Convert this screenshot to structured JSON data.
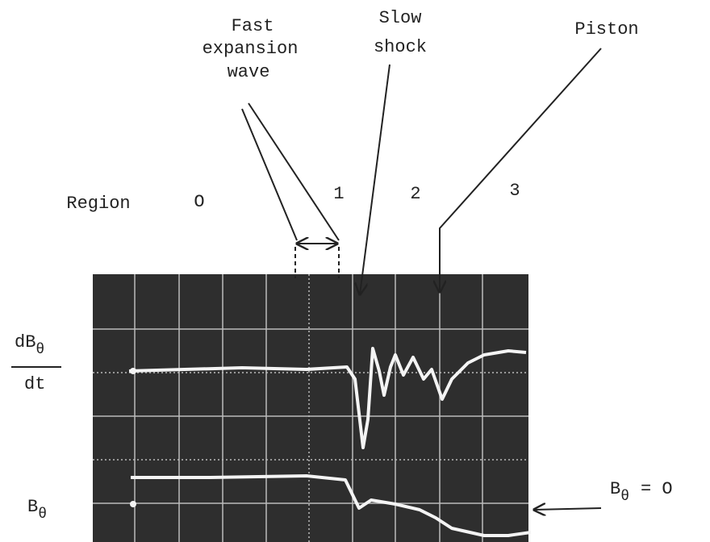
{
  "labels": {
    "fast": [
      "Fast",
      "expansion",
      "wave"
    ],
    "slow": [
      "Slow",
      "shock"
    ],
    "piston": "Piston",
    "region": "Region",
    "regions": [
      "O",
      "1",
      "2",
      "3"
    ],
    "dbdt": {
      "numerator": "dB",
      "subscript": "θ",
      "denominator": "dt"
    },
    "b": {
      "text": "B",
      "subscript": "θ"
    },
    "b_zero": {
      "text": "B",
      "subscript": "θ",
      "rest": "= O"
    }
  }
}
